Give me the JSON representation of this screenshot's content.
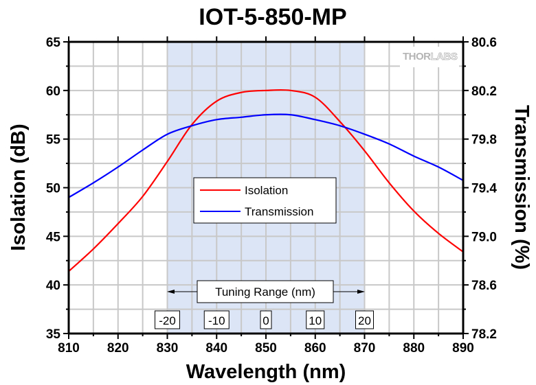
{
  "chart_data": {
    "type": "line",
    "title": "IOT-5-850-MP",
    "xlabel": "Wavelength (nm)",
    "ylabel": "Isolation (dB)",
    "y2label": "Transmission (%)",
    "xlim": [
      810,
      890
    ],
    "ylim": [
      35,
      65
    ],
    "y2lim": [
      78.2,
      80.6
    ],
    "xticks": [
      "810",
      "820",
      "830",
      "840",
      "850",
      "860",
      "870",
      "880",
      "890"
    ],
    "yticks": [
      "35",
      "40",
      "45",
      "50",
      "55",
      "60",
      "65"
    ],
    "y2ticks": [
      "78.2",
      "78.6",
      "79.0",
      "79.4",
      "79.8",
      "80.2",
      "80.6"
    ],
    "grid": true,
    "legend_position": "center-left",
    "shaded_region": {
      "x_range": [
        830,
        870
      ],
      "color": "#dce5f5",
      "label": "Tuning Range (nm)"
    },
    "tuning_labels": [
      {
        "x": 830,
        "label": "-20"
      },
      {
        "x": 840,
        "label": "-10"
      },
      {
        "x": 850,
        "label": "0"
      },
      {
        "x": 860,
        "label": "10"
      },
      {
        "x": 870,
        "label": "20"
      }
    ],
    "watermark": {
      "bold": "THOR",
      "light": "LABS"
    },
    "x": [
      810,
      815,
      820,
      825,
      830,
      835,
      840,
      845,
      850,
      855,
      860,
      865,
      870,
      875,
      880,
      885,
      890
    ],
    "series": [
      {
        "name": "Isolation",
        "axis": "left",
        "color": "#ff0000",
        "values": [
          41.4,
          43.7,
          46.3,
          49.1,
          52.7,
          56.5,
          58.9,
          59.8,
          60.0,
          60.0,
          59.3,
          56.8,
          53.8,
          50.5,
          47.6,
          45.3,
          43.4
        ]
      },
      {
        "name": "Transmission",
        "axis": "right",
        "color": "#0000ff",
        "values": [
          79.32,
          79.44,
          79.57,
          79.71,
          79.84,
          79.91,
          79.96,
          79.98,
          80.0,
          80.0,
          79.96,
          79.91,
          79.84,
          79.76,
          79.66,
          79.57,
          79.46
        ]
      }
    ]
  }
}
